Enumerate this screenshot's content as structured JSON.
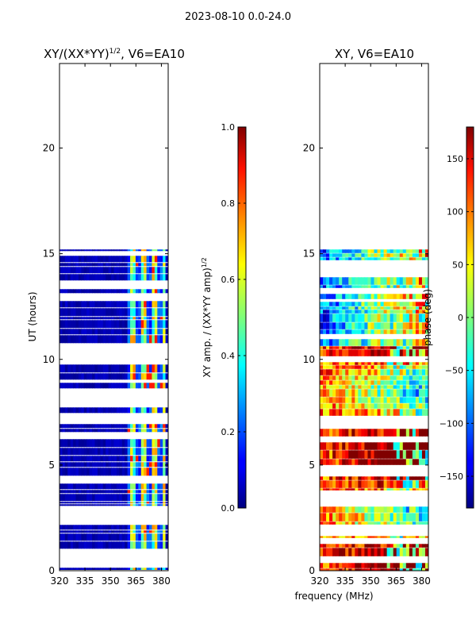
{
  "suptitle": "2023-08-10 0.0-24.0",
  "chart_data": [
    {
      "type": "heatmap",
      "title_main": "XY/(XX*YY)",
      "title_exp": "1/2",
      "title_tail": ", V6=EA10",
      "xlabel": "frequency (MHz)",
      "ylabel": "UT (hours)",
      "xlim": [
        320,
        384
      ],
      "ylim": [
        0,
        24
      ],
      "xticks": [
        "320",
        "335",
        "350",
        "365",
        "380"
      ],
      "xtick_values": [
        320,
        335,
        350,
        365,
        380
      ],
      "yticks": [
        "0",
        "5",
        "10",
        "15",
        "20"
      ],
      "ytick_values": [
        0,
        5,
        10,
        15,
        20
      ],
      "data_extent_hours": [
        0,
        15.2
      ],
      "hot_band_mhz": [
        361,
        381
      ],
      "colorbar": {
        "label_main": "XY amp. / (XX*YY amp)",
        "label_exp": "1/2",
        "range": [
          0.0,
          1.0
        ],
        "ticks": [
          "0.0",
          "0.2",
          "0.4",
          "0.6",
          "0.8",
          "1.0"
        ],
        "tick_values": [
          0.0,
          0.2,
          0.4,
          0.6,
          0.8,
          1.0
        ]
      }
    },
    {
      "type": "heatmap",
      "title": "XY, V6=EA10",
      "xlabel": "frequency (MHz)",
      "xlim": [
        320,
        384
      ],
      "ylim": [
        0,
        24
      ],
      "xticks": [
        "320",
        "335",
        "350",
        "365",
        "380"
      ],
      "xtick_values": [
        320,
        335,
        350,
        365,
        380
      ],
      "yticks": [
        "0",
        "5",
        "10",
        "15",
        "20"
      ],
      "ytick_values": [
        0,
        5,
        10,
        15,
        20
      ],
      "data_extent_hours": [
        0,
        15.2
      ],
      "colorbar": {
        "label": "phase (deg)",
        "range": [
          -180,
          180
        ],
        "ticks": [
          "−150",
          "−100",
          "−50",
          "0",
          "50",
          "100",
          "150"
        ],
        "tick_values": [
          -150,
          -100,
          -50,
          0,
          50,
          100,
          150
        ]
      }
    }
  ]
}
